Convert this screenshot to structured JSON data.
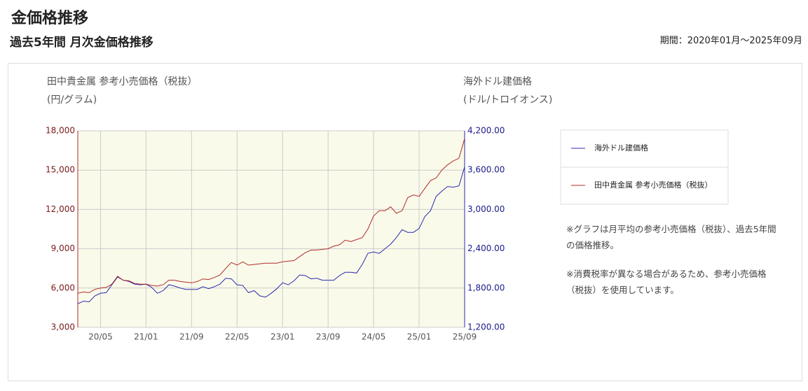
{
  "header": {
    "title": "金価格推移",
    "subtitle": "過去5年間 月次金価格推移",
    "period": "期間：2020年01月～2025年09月"
  },
  "chart_data": {
    "type": "line",
    "y_label": "田中貴金属 参考小売価格（税抜）",
    "y_unit": "(円/グラム)",
    "y2_label": "海外ドル建価格",
    "y2_unit": "(ドル/トロイオンス)",
    "categories": [
      null,
      null,
      null,
      null,
      "20/05",
      null,
      null,
      null,
      null,
      null,
      null,
      null,
      "21/01",
      null,
      null,
      null,
      null,
      null,
      null,
      null,
      "21/09",
      null,
      null,
      null,
      null,
      null,
      null,
      null,
      "22/05",
      null,
      null,
      null,
      null,
      null,
      null,
      null,
      "23/01",
      null,
      null,
      null,
      null,
      null,
      null,
      null,
      "23/09",
      null,
      null,
      null,
      null,
      null,
      null,
      null,
      "24/05",
      null,
      null,
      null,
      null,
      null,
      null,
      null,
      "25/01",
      null,
      null,
      null,
      null,
      null,
      null,
      null,
      "25/09"
    ],
    "series": [
      {
        "name": "海外ドル建価格",
        "color": "#2b2bb0",
        "axis": "y2",
        "values": [
          1560,
          1600,
          1590,
          1680,
          1720,
          1730,
          1850,
          1970,
          1920,
          1900,
          1860,
          1850,
          1860,
          1810,
          1720,
          1760,
          1850,
          1830,
          1800,
          1780,
          1780,
          1780,
          1820,
          1790,
          1820,
          1860,
          1950,
          1940,
          1850,
          1840,
          1730,
          1760,
          1680,
          1660,
          1720,
          1790,
          1880,
          1850,
          1910,
          2000,
          1990,
          1940,
          1950,
          1920,
          1920,
          1920,
          1990,
          2040,
          2040,
          2030,
          2160,
          2330,
          2350,
          2330,
          2400,
          2470,
          2570,
          2690,
          2650,
          2650,
          2710,
          2890,
          2980,
          3200,
          3280,
          3350,
          3340,
          3360,
          3650
        ]
      },
      {
        "name": "田中貴金属 参考小売価格（税抜）",
        "color": "#b02b2b",
        "values": [
          5600,
          5700,
          5650,
          5900,
          6000,
          6050,
          6300,
          6900,
          6600,
          6550,
          6350,
          6300,
          6300,
          6200,
          6150,
          6250,
          6600,
          6600,
          6500,
          6450,
          6400,
          6500,
          6700,
          6650,
          6800,
          7000,
          7500,
          7950,
          7750,
          8000,
          7750,
          7800,
          7850,
          7900,
          7900,
          7900,
          8000,
          8050,
          8100,
          8400,
          8700,
          8900,
          8900,
          8950,
          9000,
          9200,
          9300,
          9650,
          9550,
          9700,
          9850,
          10500,
          11500,
          11900,
          11900,
          12200,
          11700,
          11900,
          12900,
          13100,
          13000,
          13600,
          14200,
          14400,
          15000,
          15400,
          15700,
          15900,
          17400
        ]
      }
    ],
    "ylim": [
      3000,
      18000
    ],
    "yticks": [
      {
        "value": 3000,
        "label": "3,000"
      },
      {
        "value": 6000,
        "label": "6,000"
      },
      {
        "value": 9000,
        "label": "9,000"
      },
      {
        "value": 12000,
        "label": "12,000"
      },
      {
        "value": 15000,
        "label": "15,000"
      },
      {
        "value": 18000,
        "label": "18,000"
      }
    ],
    "y2lim": [
      1200,
      4200
    ],
    "y2ticks": [
      {
        "value": 1200,
        "label": "1,200.00"
      },
      {
        "value": 1800,
        "label": "1,800.00"
      },
      {
        "value": 2400,
        "label": "2,400.00"
      },
      {
        "value": 3000,
        "label": "3,000.00"
      },
      {
        "value": 3600,
        "label": "3,600.00"
      },
      {
        "value": 4200,
        "label": "4,200.00"
      }
    ],
    "grid": true
  },
  "notes": [
    "※グラフは月平均の参考小売価格（税抜）、過去5年間の価格推移。",
    "※消費税率が異なる場合があるため、参考小売価格（税抜）を使用しています。"
  ]
}
